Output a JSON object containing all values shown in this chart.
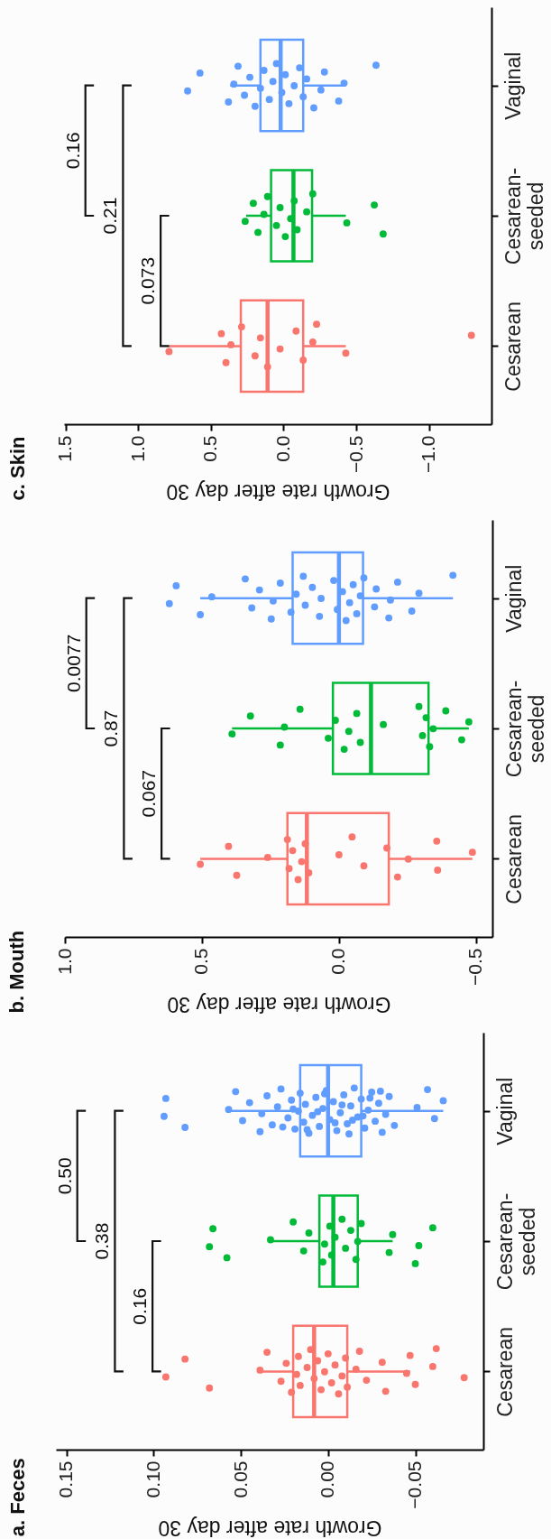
{
  "chart_data": [
    {
      "type": "box",
      "orientation": "horizontal",
      "title": "a. Feces",
      "xlabel": "Growth rate after day 30",
      "categories": [
        "Vaginal",
        "Cesarean-seeded",
        "Cesarean"
      ],
      "colors": [
        "#619cff",
        "#00ba38",
        "#f8766d"
      ],
      "xlim": [
        0.156,
        -0.089
      ],
      "xticks": [
        0.15,
        {
          "value": 0.1,
          "label": "0.10"
        },
        0.05,
        {
          "value": 0,
          "label": "0.00"
        },
        {
          "value": -0.05,
          "label": "−0.05"
        }
      ],
      "boxes": [
        {
          "low": -0.066,
          "q1": -0.019,
          "median": 0.0,
          "q3": 0.016,
          "high": 0.057
        },
        {
          "low": -0.037,
          "q1": -0.017,
          "median": -0.003,
          "q3": 0.005,
          "high": 0.033
        },
        {
          "low": -0.047,
          "q1": -0.011,
          "median": 0.008,
          "q3": 0.02,
          "high": 0.039
        }
      ],
      "series": [
        {
          "type": "scatter",
          "color": "#f8766d",
          "x": [
            "Cesarean",
            "Cesarean",
            "Cesarean",
            "Cesarean",
            "Cesarean",
            "Cesarean",
            "Cesarean",
            "Cesarean",
            "Cesarean",
            "Cesarean",
            "Cesarean",
            "Cesarean",
            "Cesarean",
            "Cesarean",
            "Cesarean",
            "Cesarean",
            "Cesarean",
            "Cesarean",
            "Cesarean",
            "Cesarean",
            "Cesarean",
            "Cesarean",
            "Cesarean",
            "Cesarean",
            "Cesarean",
            "Cesarean",
            "Cesarean",
            "Cesarean",
            "Cesarean",
            "Cesarean",
            "Cesarean",
            "Cesarean",
            "Cesarean",
            "Cesarean",
            "Cesarean"
          ],
          "values": [
            0.093,
            0.082,
            0.068,
            0.039,
            0.035,
            0.027,
            0.024,
            0.021,
            0.018,
            0.017,
            0.016,
            0.012,
            0.01,
            0.008,
            0.006,
            0.004,
            0.002,
            0.0,
            -0.002,
            -0.004,
            -0.006,
            -0.008,
            -0.01,
            -0.011,
            -0.016,
            -0.018,
            -0.022,
            -0.031,
            -0.033,
            -0.045,
            -0.047,
            -0.05,
            -0.06,
            -0.062,
            -0.078
          ]
        },
        {
          "type": "scatter",
          "color": "#00ba38",
          "x": [
            "Cesarean-seeded",
            "Cesarean-seeded",
            "Cesarean-seeded",
            "Cesarean-seeded",
            "Cesarean-seeded",
            "Cesarean-seeded",
            "Cesarean-seeded",
            "Cesarean-seeded",
            "Cesarean-seeded",
            "Cesarean-seeded",
            "Cesarean-seeded",
            "Cesarean-seeded",
            "Cesarean-seeded",
            "Cesarean-seeded",
            "Cesarean-seeded",
            "Cesarean-seeded",
            "Cesarean-seeded",
            "Cesarean-seeded",
            "Cesarean-seeded",
            "Cesarean-seeded",
            "Cesarean-seeded",
            "Cesarean-seeded",
            "Cesarean-seeded"
          ],
          "values": [
            0.068,
            0.066,
            0.058,
            0.033,
            0.02,
            0.014,
            0.011,
            0.003,
            0.002,
            -0.001,
            -0.002,
            -0.004,
            -0.008,
            -0.01,
            -0.013,
            -0.016,
            -0.017,
            -0.019,
            -0.035,
            -0.037,
            -0.05,
            -0.052,
            -0.06
          ]
        },
        {
          "type": "scatter",
          "color": "#619cff",
          "x": [
            "Vaginal",
            "Vaginal",
            "Vaginal",
            "Vaginal",
            "Vaginal",
            "Vaginal",
            "Vaginal",
            "Vaginal",
            "Vaginal",
            "Vaginal",
            "Vaginal",
            "Vaginal",
            "Vaginal",
            "Vaginal",
            "Vaginal",
            "Vaginal",
            "Vaginal",
            "Vaginal",
            "Vaginal",
            "Vaginal",
            "Vaginal",
            "Vaginal",
            "Vaginal",
            "Vaginal",
            "Vaginal",
            "Vaginal",
            "Vaginal",
            "Vaginal",
            "Vaginal",
            "Vaginal",
            "Vaginal",
            "Vaginal",
            "Vaginal",
            "Vaginal",
            "Vaginal",
            "Vaginal",
            "Vaginal",
            "Vaginal",
            "Vaginal",
            "Vaginal",
            "Vaginal",
            "Vaginal",
            "Vaginal",
            "Vaginal",
            "Vaginal",
            "Vaginal",
            "Vaginal",
            "Vaginal",
            "Vaginal",
            "Vaginal",
            "Vaginal",
            "Vaginal",
            "Vaginal",
            "Vaginal",
            "Vaginal",
            "Vaginal",
            "Vaginal",
            "Vaginal",
            "Vaginal",
            "Vaginal",
            "Vaginal"
          ],
          "values": [
            0.094,
            0.093,
            0.082,
            0.057,
            0.053,
            0.049,
            0.045,
            0.039,
            0.038,
            0.035,
            0.032,
            0.029,
            0.027,
            0.023,
            0.021,
            0.019,
            0.017,
            0.016,
            0.014,
            0.013,
            0.011,
            0.009,
            0.007,
            0.005,
            0.003,
            0.001,
            -0.001,
            -0.003,
            -0.005,
            -0.007,
            -0.009,
            -0.011,
            -0.013,
            -0.015,
            -0.017,
            -0.019,
            -0.021,
            -0.023,
            -0.025,
            -0.027,
            -0.029,
            -0.031,
            -0.033,
            -0.035,
            -0.038,
            -0.051,
            -0.057,
            -0.061,
            -0.066,
            0.012,
            0.006,
            0.002,
            -0.004,
            -0.008,
            -0.012,
            -0.02,
            -0.024,
            0.026,
            0.02,
            -0.03,
            -0.014
          ]
        }
      ],
      "annotations": [
        "0.16",
        "0.38",
        "0.50"
      ]
    },
    {
      "type": "box",
      "orientation": "horizontal",
      "title": "b. Mouth",
      "xlabel": "Growth rate after day 30",
      "categories": [
        "Vaginal",
        "Cesarean-seeded",
        "Cesarean"
      ],
      "colors": [
        "#619cff",
        "#00ba38",
        "#f8766d"
      ],
      "xlim": [
        1.0,
        -0.56
      ],
      "xticks": [
        {
          "value": 1,
          "label": "1.0"
        },
        0.5,
        {
          "value": 0,
          "label": "0.0"
        },
        {
          "value": -0.5,
          "label": "−0.5"
        }
      ],
      "boxes": [
        {
          "low": -0.416,
          "q1": -0.088,
          "median": 0.0,
          "q3": 0.169,
          "high": 0.506
        },
        {
          "low": -0.474,
          "q1": -0.327,
          "median": -0.117,
          "q3": 0.022,
          "high": 0.39
        },
        {
          "low": -0.487,
          "q1": -0.182,
          "median": 0.117,
          "q3": 0.188,
          "high": 0.506
        }
      ],
      "series": [
        {
          "type": "scatter",
          "color": "#f8766d",
          "x": [
            "Cesarean",
            "Cesarean",
            "Cesarean",
            "Cesarean",
            "Cesarean",
            "Cesarean",
            "Cesarean",
            "Cesarean",
            "Cesarean",
            "Cesarean",
            "Cesarean",
            "Cesarean",
            "Cesarean",
            "Cesarean",
            "Cesarean",
            "Cesarean",
            "Cesarean",
            "Cesarean",
            "Cesarean",
            "Cesarean"
          ],
          "values": [
            0.506,
            0.403,
            0.373,
            0.26,
            0.188,
            0.182,
            0.169,
            0.149,
            0.136,
            0.123,
            0.11,
            0.0,
            -0.048,
            -0.091,
            -0.175,
            -0.214,
            -0.253,
            -0.357,
            -0.36,
            -0.487
          ]
        },
        {
          "type": "scatter",
          "color": "#00ba38",
          "x": [
            "Cesarean-seeded",
            "Cesarean-seeded",
            "Cesarean-seeded",
            "Cesarean-seeded",
            "Cesarean-seeded",
            "Cesarean-seeded",
            "Cesarean-seeded",
            "Cesarean-seeded",
            "Cesarean-seeded",
            "Cesarean-seeded",
            "Cesarean-seeded",
            "Cesarean-seeded",
            "Cesarean-seeded",
            "Cesarean-seeded",
            "Cesarean-seeded",
            "Cesarean-seeded",
            "Cesarean-seeded",
            "Cesarean-seeded",
            "Cesarean-seeded",
            "Cesarean-seeded"
          ],
          "values": [
            0.39,
            0.323,
            0.214,
            0.199,
            0.142,
            0.039,
            0.013,
            -0.019,
            -0.036,
            -0.065,
            -0.078,
            -0.162,
            -0.292,
            -0.305,
            -0.318,
            -0.331,
            -0.344,
            -0.39,
            -0.448,
            -0.474
          ]
        },
        {
          "type": "scatter",
          "color": "#619cff",
          "x": [
            "Vaginal",
            "Vaginal",
            "Vaginal",
            "Vaginal",
            "Vaginal",
            "Vaginal",
            "Vaginal",
            "Vaginal",
            "Vaginal",
            "Vaginal",
            "Vaginal",
            "Vaginal",
            "Vaginal",
            "Vaginal",
            "Vaginal",
            "Vaginal",
            "Vaginal",
            "Vaginal",
            "Vaginal",
            "Vaginal",
            "Vaginal",
            "Vaginal",
            "Vaginal",
            "Vaginal",
            "Vaginal",
            "Vaginal",
            "Vaginal",
            "Vaginal",
            "Vaginal",
            "Vaginal",
            "Vaginal",
            "Vaginal",
            "Vaginal",
            "Vaginal"
          ],
          "values": [
            0.619,
            0.594,
            0.506,
            0.464,
            0.342,
            0.318,
            0.29,
            0.247,
            0.24,
            0.214,
            0.175,
            0.156,
            0.13,
            0.123,
            0.097,
            0.071,
            0.065,
            0.019,
            0.006,
            -0.013,
            -0.026,
            -0.039,
            -0.052,
            -0.065,
            -0.078,
            -0.091,
            -0.13,
            -0.136,
            -0.182,
            -0.188,
            -0.214,
            -0.266,
            -0.292,
            -0.416
          ]
        }
      ],
      "annotations": [
        "0.067",
        "0.87",
        "0.0077"
      ]
    },
    {
      "type": "box",
      "orientation": "horizontal",
      "title": "c. Skin",
      "xlabel": "Growth rate after day 30",
      "categories": [
        "Vaginal",
        "Cesarean-seeded",
        "Cesarean"
      ],
      "colors": [
        "#619cff",
        "#00ba38",
        "#f8766d"
      ],
      "xlim": [
        1.51,
        -1.43
      ],
      "xticks": [
        1.5,
        {
          "value": 1,
          "label": "1.0"
        },
        0.5,
        {
          "value": 0,
          "label": "0.0"
        },
        {
          "value": -0.5,
          "label": "−0.5"
        },
        {
          "value": -1,
          "label": "−1.0"
        }
      ],
      "boxes": [
        {
          "low": -0.428,
          "q1": -0.135,
          "median": 0.02,
          "q3": 0.159,
          "high": 0.367
        },
        {
          "low": -0.428,
          "q1": -0.196,
          "median": -0.068,
          "q3": 0.086,
          "high": 0.257
        },
        {
          "low": -0.428,
          "q1": -0.135,
          "median": 0.11,
          "q3": 0.294,
          "high": 0.788
        }
      ],
      "series": [
        {
          "type": "scatter",
          "color": "#f8766d",
          "x": [
            "Cesarean",
            "Cesarean",
            "Cesarean",
            "Cesarean",
            "Cesarean",
            "Cesarean",
            "Cesarean",
            "Cesarean",
            "Cesarean",
            "Cesarean",
            "Cesarean",
            "Cesarean",
            "Cesarean",
            "Cesarean",
            "Cesarean"
          ],
          "values": [
            0.788,
            0.428,
            0.396,
            0.362,
            0.289,
            0.196,
            0.159,
            0.11,
            0.024,
            -0.086,
            -0.135,
            -0.201,
            -0.227,
            -0.428,
            -1.292
          ]
        },
        {
          "type": "scatter",
          "color": "#00ba38",
          "x": [
            "Cesarean-seeded",
            "Cesarean-seeded",
            "Cesarean-seeded",
            "Cesarean-seeded",
            "Cesarean-seeded",
            "Cesarean-seeded",
            "Cesarean-seeded",
            "Cesarean-seeded",
            "Cesarean-seeded",
            "Cesarean-seeded",
            "Cesarean-seeded",
            "Cesarean-seeded",
            "Cesarean-seeded",
            "Cesarean-seeded",
            "Cesarean-seeded",
            "Cesarean-seeded"
          ],
          "values": [
            0.264,
            0.208,
            0.176,
            0.135,
            0.11,
            0.049,
            0.024,
            -0.012,
            -0.049,
            -0.073,
            -0.093,
            -0.159,
            -0.201,
            -0.435,
            -0.624,
            -0.685
          ]
        },
        {
          "type": "scatter",
          "color": "#619cff",
          "x": [
            "Vaginal",
            "Vaginal",
            "Vaginal",
            "Vaginal",
            "Vaginal",
            "Vaginal",
            "Vaginal",
            "Vaginal",
            "Vaginal",
            "Vaginal",
            "Vaginal",
            "Vaginal",
            "Vaginal",
            "Vaginal",
            "Vaginal",
            "Vaginal",
            "Vaginal",
            "Vaginal",
            "Vaginal",
            "Vaginal",
            "Vaginal",
            "Vaginal",
            "Vaginal",
            "Vaginal",
            "Vaginal",
            "Vaginal"
          ],
          "values": [
            0.66,
            0.575,
            0.379,
            0.342,
            0.313,
            0.269,
            0.232,
            0.196,
            0.159,
            0.135,
            0.098,
            0.073,
            0.049,
            0.012,
            -0.012,
            -0.037,
            -0.073,
            -0.11,
            -0.135,
            -0.159,
            -0.208,
            -0.257,
            -0.281,
            -0.379,
            -0.416,
            -0.636
          ]
        }
      ],
      "annotations": [
        "0.073",
        "0.21",
        "0.16"
      ]
    }
  ]
}
